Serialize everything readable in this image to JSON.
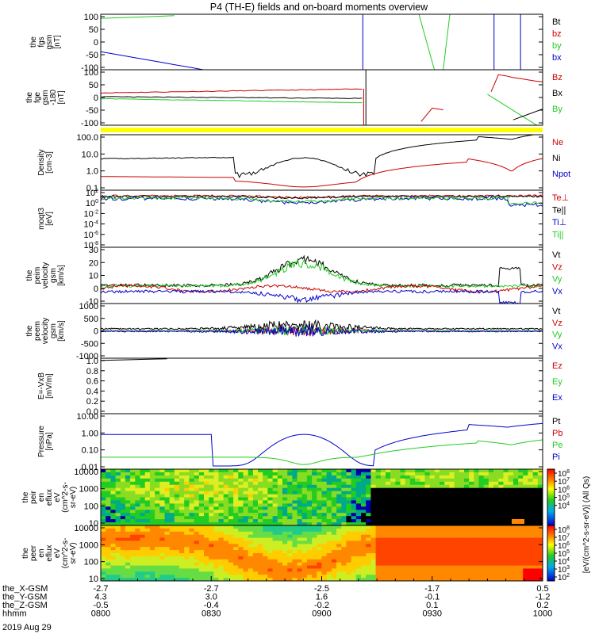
{
  "title": "P4 (TH-E) fields and on-board moments overview",
  "date_label": "2019 Aug 29",
  "colors": {
    "black": "#000000",
    "red": "#cc0000",
    "green": "#22cc22",
    "blue": "#0000cc",
    "yellow": "#ffff00"
  },
  "chart_data": [
    {
      "type": "line",
      "ylabel": [
        "the",
        "fgs",
        "gsm",
        "[nT]"
      ],
      "yticks": [
        "100",
        "50",
        "0",
        "-50",
        "-100"
      ],
      "ylim": [
        -100,
        100
      ],
      "log": false,
      "legend": [
        {
          "name": "Bt",
          "color": "black"
        },
        {
          "name": "bz",
          "color": "red"
        },
        {
          "name": "by",
          "color": "green"
        },
        {
          "name": "bx",
          "color": "blue"
        }
      ]
    },
    {
      "type": "line",
      "ylabel": [
        "the",
        "fge",
        "gsm",
        "-180",
        "[nT]"
      ],
      "yticks": [
        "100",
        "50",
        "0",
        "-50",
        "-100"
      ],
      "ylim": [
        -120,
        120
      ],
      "log": false,
      "legend": [
        {
          "name": "Bz",
          "color": "red"
        },
        {
          "name": "Bx",
          "color": "black"
        },
        {
          "name": "By",
          "color": "green"
        }
      ]
    },
    {
      "type": "line",
      "ylabel": [
        "Density",
        "[cm-3]"
      ],
      "yticks": [
        "100.0",
        "10.0",
        "1.0",
        "0.1"
      ],
      "ylim": [
        0.1,
        100
      ],
      "log": true,
      "legend": [
        {
          "name": "Ne",
          "color": "red"
        },
        {
          "name": "Ni",
          "color": "black"
        },
        {
          "name": "Npot",
          "color": "blue"
        }
      ]
    },
    {
      "type": "line",
      "ylabel": [
        "moqt3",
        "[eV]"
      ],
      "yticks": [
        "10^2",
        "10^0",
        "10^-2",
        "10^-4",
        "10^-6",
        "10^-8"
      ],
      "ylim": [
        -8,
        3
      ],
      "log": true,
      "legend": [
        {
          "name": "Te⊥",
          "color": "red"
        },
        {
          "name": "Te||",
          "color": "black"
        },
        {
          "name": "Ti⊥",
          "color": "blue"
        },
        {
          "name": "Ti||",
          "color": "green"
        }
      ]
    },
    {
      "type": "line",
      "ylabel": [
        "the",
        "peim",
        "velocity",
        "gsm",
        "[km/s]"
      ],
      "yticks": [
        "30",
        "20",
        "10",
        "0",
        "-10"
      ],
      "ylim": [
        -10,
        30
      ],
      "log": false,
      "legend": [
        {
          "name": "Vt",
          "color": "black"
        },
        {
          "name": "Vz",
          "color": "red"
        },
        {
          "name": "Vy",
          "color": "green"
        },
        {
          "name": "Vx",
          "color": "blue"
        }
      ]
    },
    {
      "type": "line",
      "ylabel": [
        "the",
        "peem",
        "velocity",
        "gsm",
        "[km/s]"
      ],
      "yticks": [
        "1000",
        "500",
        "0",
        "-500",
        "-1000"
      ],
      "ylim": [
        -1000,
        1000
      ],
      "log": false,
      "legend": [
        {
          "name": "Vt",
          "color": "black"
        },
        {
          "name": "Vz",
          "color": "red"
        },
        {
          "name": "Vy",
          "color": "green"
        },
        {
          "name": "Vx",
          "color": "blue"
        }
      ]
    },
    {
      "type": "line",
      "ylabel": [
        "E=-VxB",
        "[mV/m]"
      ],
      "yticks": [
        "1.0",
        "0.8",
        "0.6",
        "0.4",
        "0.2",
        "0.0"
      ],
      "ylim": [
        0,
        1
      ],
      "log": false,
      "legend": [
        {
          "name": "Ez",
          "color": "red"
        },
        {
          "name": "Ey",
          "color": "green"
        },
        {
          "name": "Ex",
          "color": "blue"
        }
      ]
    },
    {
      "type": "line",
      "ylabel": [
        "Pressure",
        "[nPa]"
      ],
      "yticks": [
        "10.00",
        "1.00",
        "0.10",
        "0.01"
      ],
      "ylim": [
        0.005,
        20
      ],
      "log": true,
      "legend": [
        {
          "name": "Pt",
          "color": "black"
        },
        {
          "name": "Pb",
          "color": "red"
        },
        {
          "name": "Pe",
          "color": "green"
        },
        {
          "name": "Pi",
          "color": "blue"
        }
      ]
    },
    {
      "type": "heatmap",
      "ylabel": [
        "the",
        "peir",
        "en",
        "eflux",
        "eV",
        "(cm^2-s-",
        "sr-eV)"
      ],
      "yticks": [
        "10000",
        "1000",
        "100",
        "10"
      ],
      "ylim": [
        5,
        30000
      ],
      "log": true,
      "legend": []
    },
    {
      "type": "heatmap",
      "ylabel": [
        "the",
        "peer",
        "en",
        "eflux",
        "eV",
        "(cm^2-s-",
        "sr-eV)"
      ],
      "yticks": [
        "10000",
        "1000",
        "100",
        "10"
      ],
      "ylim": [
        5,
        30000
      ],
      "log": true,
      "legend": []
    }
  ],
  "colorbar_ticks": [
    "10^8",
    "10^7",
    "10^6",
    "10^5",
    "10^4",
    "10^3",
    "10^2"
  ],
  "colorbar_label": "[eV/(cm^2-s-sr-eV)] (All Qs)",
  "xaxis": {
    "row_labels": [
      "the_X-GSM",
      "the_Y-GSM",
      "the_Z-GSM",
      "hhmm"
    ],
    "columns": [
      [
        "-2.7",
        "4.3",
        "-0.5",
        "0800"
      ],
      [
        "-2.7",
        "3.0",
        "-0.4",
        "0830"
      ],
      [
        "-2.5",
        "1.6",
        "-0.2",
        "0900"
      ],
      [
        "-1.7",
        "-0.1",
        "0.1",
        "0930"
      ],
      [
        "0.5",
        "-1.2",
        "0.2",
        "1000"
      ]
    ]
  }
}
